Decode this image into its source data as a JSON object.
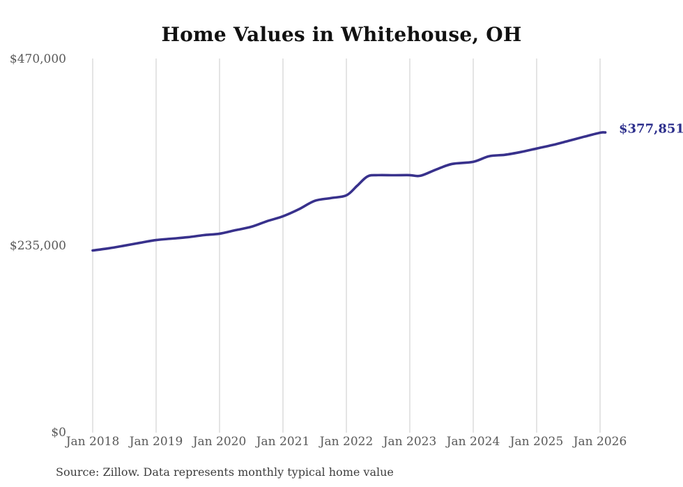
{
  "chart_data": {
    "type": "line",
    "title": "Home Values in Whitehouse, OH",
    "source_note": "Source: Zillow. Data represents monthly typical home value",
    "end_label": "$377,851",
    "latest_value": 377851,
    "grid": "vertical-only",
    "legend": "none",
    "colors": {
      "line": "#38318c",
      "end_label": "#2d2f8c",
      "gridline": "#c9c9c9",
      "tick_text": "#595959",
      "title_text": "#111111",
      "source_text": "#3d3d3d",
      "background": "#ffffff"
    },
    "y_axis": {
      "min": 0,
      "max": 470000,
      "ticks": [
        {
          "label": "$0",
          "value": 0
        },
        {
          "label": "$235,000",
          "value": 235000
        },
        {
          "label": "$470,000",
          "value": 470000
        }
      ]
    },
    "x_axis": {
      "ticks": [
        "Jan 2018",
        "Jan 2019",
        "Jan 2020",
        "Jan 2021",
        "Jan 2022",
        "Jan 2023",
        "Jan 2024",
        "Jan 2025",
        "Jan 2026"
      ]
    },
    "series": [
      {
        "name": "Monthly typical home value",
        "points": [
          {
            "date": "Jan 2018",
            "value": 229300
          },
          {
            "date": "Apr 2018",
            "value": 232000
          },
          {
            "date": "Jul 2018",
            "value": 235400
          },
          {
            "date": "Oct 2018",
            "value": 239000
          },
          {
            "date": "Jan 2019",
            "value": 242400
          },
          {
            "date": "Apr 2019",
            "value": 244200
          },
          {
            "date": "Jul 2019",
            "value": 246000
          },
          {
            "date": "Oct 2019",
            "value": 248600
          },
          {
            "date": "Jan 2020",
            "value": 250400
          },
          {
            "date": "Apr 2020",
            "value": 254800
          },
          {
            "date": "Jul 2020",
            "value": 259100
          },
          {
            "date": "Oct 2020",
            "value": 266200
          },
          {
            "date": "Jan 2021",
            "value": 272300
          },
          {
            "date": "Apr 2021",
            "value": 281100
          },
          {
            "date": "Jul 2021",
            "value": 291700
          },
          {
            "date": "Oct 2021",
            "value": 295200
          },
          {
            "date": "Jan 2022",
            "value": 298700
          },
          {
            "date": "Mar 2022",
            "value": 310500
          },
          {
            "date": "May 2022",
            "value": 322500
          },
          {
            "date": "Jul 2022",
            "value": 324100
          },
          {
            "date": "Oct 2022",
            "value": 324000
          },
          {
            "date": "Jan 2023",
            "value": 324100
          },
          {
            "date": "Mar 2023",
            "value": 323300
          },
          {
            "date": "Jun 2023",
            "value": 331200
          },
          {
            "date": "Sep 2023",
            "value": 338200
          },
          {
            "date": "Jan 2024",
            "value": 340900
          },
          {
            "date": "Apr 2024",
            "value": 347900
          },
          {
            "date": "Jul 2024",
            "value": 349700
          },
          {
            "date": "Oct 2024",
            "value": 353200
          },
          {
            "date": "Jan 2025",
            "value": 357600
          },
          {
            "date": "Apr 2025",
            "value": 362000
          },
          {
            "date": "Jul 2025",
            "value": 367200
          },
          {
            "date": "Oct 2025",
            "value": 372500
          },
          {
            "date": "Jan 2026",
            "value": 377500
          },
          {
            "date": "Feb 2026",
            "value": 377851
          }
        ]
      }
    ]
  }
}
